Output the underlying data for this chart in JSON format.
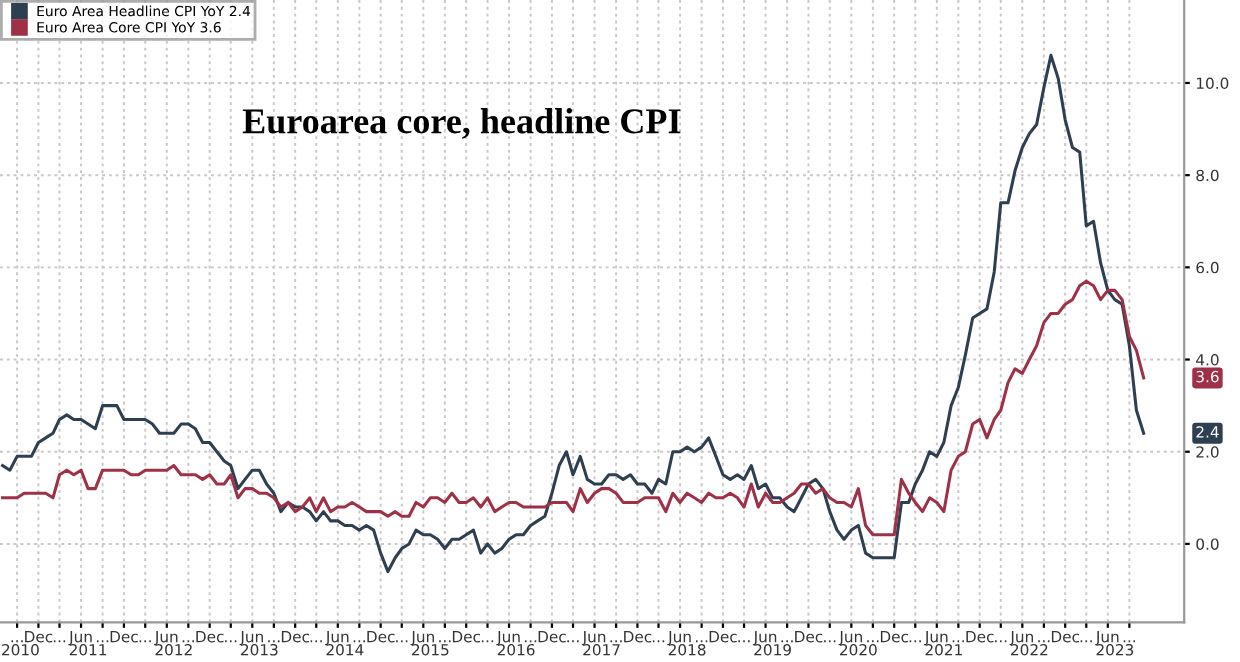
{
  "chart_data": {
    "type": "line",
    "title": "Euroarea core, headline CPI",
    "x": [
      "2010-07",
      "2010-08",
      "2010-09",
      "2010-10",
      "2010-11",
      "2010-12",
      "2011-01",
      "2011-02",
      "2011-03",
      "2011-04",
      "2011-05",
      "2011-06",
      "2011-07",
      "2011-08",
      "2011-09",
      "2011-10",
      "2011-11",
      "2011-12",
      "2012-01",
      "2012-02",
      "2012-03",
      "2012-04",
      "2012-05",
      "2012-06",
      "2012-07",
      "2012-08",
      "2012-09",
      "2012-10",
      "2012-11",
      "2012-12",
      "2013-01",
      "2013-02",
      "2013-03",
      "2013-04",
      "2013-05",
      "2013-06",
      "2013-07",
      "2013-08",
      "2013-09",
      "2013-10",
      "2013-11",
      "2013-12",
      "2014-01",
      "2014-02",
      "2014-03",
      "2014-04",
      "2014-05",
      "2014-06",
      "2014-07",
      "2014-08",
      "2014-09",
      "2014-10",
      "2014-11",
      "2014-12",
      "2015-01",
      "2015-02",
      "2015-03",
      "2015-04",
      "2015-05",
      "2015-06",
      "2015-07",
      "2015-08",
      "2015-09",
      "2015-10",
      "2015-11",
      "2015-12",
      "2016-01",
      "2016-02",
      "2016-03",
      "2016-04",
      "2016-05",
      "2016-06",
      "2016-07",
      "2016-08",
      "2016-09",
      "2016-10",
      "2016-11",
      "2016-12",
      "2017-01",
      "2017-02",
      "2017-03",
      "2017-04",
      "2017-05",
      "2017-06",
      "2017-07",
      "2017-08",
      "2017-09",
      "2017-10",
      "2017-11",
      "2017-12",
      "2018-01",
      "2018-02",
      "2018-03",
      "2018-04",
      "2018-05",
      "2018-06",
      "2018-07",
      "2018-08",
      "2018-09",
      "2018-10",
      "2018-11",
      "2018-12",
      "2019-01",
      "2019-02",
      "2019-03",
      "2019-04",
      "2019-05",
      "2019-06",
      "2019-07",
      "2019-08",
      "2019-09",
      "2019-10",
      "2019-11",
      "2019-12",
      "2020-01",
      "2020-02",
      "2020-03",
      "2020-04",
      "2020-05",
      "2020-06",
      "2020-07",
      "2020-08",
      "2020-09",
      "2020-10",
      "2020-11",
      "2020-12",
      "2021-01",
      "2021-02",
      "2021-03",
      "2021-04",
      "2021-05",
      "2021-06",
      "2021-07",
      "2021-08",
      "2021-09",
      "2021-10",
      "2021-11",
      "2021-12",
      "2022-01",
      "2022-02",
      "2022-03",
      "2022-04",
      "2022-05",
      "2022-06",
      "2022-07",
      "2022-08",
      "2022-09",
      "2022-10",
      "2022-11",
      "2022-12",
      "2023-01",
      "2023-02",
      "2023-03",
      "2023-04",
      "2023-05",
      "2023-06",
      "2023-07",
      "2023-08",
      "2023-09",
      "2023-10",
      "2023-11"
    ],
    "series": [
      {
        "name": "Euro Area Headline CPI YoY 2.4",
        "color": "#2e3f52",
        "values": [
          1.7,
          1.6,
          1.9,
          1.9,
          1.9,
          2.2,
          2.3,
          2.4,
          2.7,
          2.8,
          2.7,
          2.7,
          2.6,
          2.5,
          3.0,
          3.0,
          3.0,
          2.7,
          2.7,
          2.7,
          2.7,
          2.6,
          2.4,
          2.4,
          2.4,
          2.6,
          2.6,
          2.5,
          2.2,
          2.2,
          2.0,
          1.8,
          1.7,
          1.2,
          1.4,
          1.6,
          1.6,
          1.3,
          1.1,
          0.7,
          0.9,
          0.8,
          0.8,
          0.7,
          0.5,
          0.7,
          0.5,
          0.5,
          0.4,
          0.4,
          0.3,
          0.4,
          0.3,
          -0.2,
          -0.6,
          -0.3,
          -0.1,
          0.0,
          0.3,
          0.2,
          0.2,
          0.1,
          -0.1,
          0.1,
          0.1,
          0.2,
          0.3,
          -0.2,
          0.0,
          -0.2,
          -0.1,
          0.1,
          0.2,
          0.2,
          0.4,
          0.5,
          0.6,
          1.1,
          1.7,
          2.0,
          1.5,
          1.9,
          1.4,
          1.3,
          1.3,
          1.5,
          1.5,
          1.4,
          1.5,
          1.3,
          1.3,
          1.1,
          1.4,
          1.3,
          2.0,
          2.0,
          2.1,
          2.0,
          2.1,
          2.3,
          1.9,
          1.5,
          1.4,
          1.5,
          1.4,
          1.7,
          1.2,
          1.3,
          1.0,
          1.0,
          0.8,
          0.7,
          1.0,
          1.3,
          1.4,
          1.2,
          0.7,
          0.3,
          0.1,
          0.3,
          0.4,
          -0.2,
          -0.3,
          -0.3,
          -0.3,
          -0.3,
          0.9,
          0.9,
          1.3,
          1.6,
          2.0,
          1.9,
          2.2,
          3.0,
          3.4,
          4.1,
          4.9,
          5.0,
          5.1,
          5.9,
          7.4,
          7.4,
          8.1,
          8.6,
          8.9,
          9.1,
          9.9,
          10.6,
          10.1,
          9.2,
          8.6,
          8.5,
          6.9,
          7.0,
          6.1,
          5.5,
          5.3,
          5.2,
          4.3,
          2.9,
          2.4
        ]
      },
      {
        "name": "Euro Area Core CPI YoY 3.6",
        "color": "#9e3048",
        "values": [
          1.0,
          1.0,
          1.0,
          1.1,
          1.1,
          1.1,
          1.1,
          1.0,
          1.5,
          1.6,
          1.5,
          1.6,
          1.2,
          1.2,
          1.6,
          1.6,
          1.6,
          1.6,
          1.5,
          1.5,
          1.6,
          1.6,
          1.6,
          1.6,
          1.7,
          1.5,
          1.5,
          1.5,
          1.4,
          1.5,
          1.3,
          1.3,
          1.5,
          1.0,
          1.2,
          1.2,
          1.1,
          1.1,
          1.0,
          0.8,
          0.9,
          0.7,
          0.8,
          1.0,
          0.7,
          1.0,
          0.7,
          0.8,
          0.8,
          0.9,
          0.8,
          0.7,
          0.7,
          0.7,
          0.6,
          0.7,
          0.6,
          0.6,
          0.9,
          0.8,
          1.0,
          1.0,
          0.9,
          1.1,
          0.9,
          0.9,
          1.0,
          0.8,
          1.0,
          0.7,
          0.8,
          0.9,
          0.9,
          0.8,
          0.8,
          0.8,
          0.8,
          0.9,
          0.9,
          0.9,
          0.7,
          1.2,
          0.9,
          1.1,
          1.2,
          1.2,
          1.1,
          0.9,
          0.9,
          0.9,
          1.0,
          1.0,
          1.0,
          0.7,
          1.1,
          0.9,
          1.1,
          1.0,
          0.9,
          1.1,
          1.0,
          1.0,
          1.1,
          1.0,
          0.8,
          1.3,
          0.8,
          1.1,
          0.9,
          0.9,
          1.0,
          1.1,
          1.3,
          1.3,
          1.1,
          1.2,
          1.0,
          0.9,
          0.9,
          0.8,
          1.2,
          0.4,
          0.2,
          0.2,
          0.2,
          0.2,
          1.4,
          1.1,
          0.9,
          0.7,
          1.0,
          0.9,
          0.7,
          1.6,
          1.9,
          2.0,
          2.6,
          2.7,
          2.3,
          2.7,
          2.9,
          3.5,
          3.8,
          3.7,
          4.0,
          4.3,
          4.8,
          5.0,
          5.0,
          5.2,
          5.3,
          5.6,
          5.7,
          5.6,
          5.3,
          5.5,
          5.5,
          5.3,
          4.5,
          4.2,
          3.6
        ]
      }
    ],
    "annotations": [
      "2.4",
      "3.6"
    ],
    "xlim": [
      "2010-06-20",
      "2024-04-22"
    ],
    "xticks": [
      {
        "value": "2010-09",
        "label": "..."
      },
      {
        "value": "2010-12",
        "label": "Dec"
      },
      {
        "value": "2011-03",
        "label": "..."
      },
      {
        "value": "2011-06",
        "label": "Jun"
      },
      {
        "value": "2011-09",
        "label": "..."
      },
      {
        "value": "2011-12",
        "label": "Dec"
      },
      {
        "value": "2012-03",
        "label": "..."
      },
      {
        "value": "2012-06",
        "label": "Jun"
      },
      {
        "value": "2012-09",
        "label": "..."
      },
      {
        "value": "2012-12",
        "label": "Dec"
      },
      {
        "value": "2013-03",
        "label": "..."
      },
      {
        "value": "2013-06",
        "label": "Jun"
      },
      {
        "value": "2013-09",
        "label": "..."
      },
      {
        "value": "2013-12",
        "label": "Dec"
      },
      {
        "value": "2014-03",
        "label": "..."
      },
      {
        "value": "2014-06",
        "label": "Jun"
      },
      {
        "value": "2014-09",
        "label": "..."
      },
      {
        "value": "2014-12",
        "label": "Dec"
      },
      {
        "value": "2015-03",
        "label": "..."
      },
      {
        "value": "2015-06",
        "label": "Jun"
      },
      {
        "value": "2015-09",
        "label": "..."
      },
      {
        "value": "2015-12",
        "label": "Dec"
      },
      {
        "value": "2016-03",
        "label": "..."
      },
      {
        "value": "2016-06",
        "label": "Jun"
      },
      {
        "value": "2016-09",
        "label": "..."
      },
      {
        "value": "2016-12",
        "label": "Dec"
      },
      {
        "value": "2017-03",
        "label": "..."
      },
      {
        "value": "2017-06",
        "label": "Jun"
      },
      {
        "value": "2017-09",
        "label": "..."
      },
      {
        "value": "2017-12",
        "label": "Dec"
      },
      {
        "value": "2018-03",
        "label": "..."
      },
      {
        "value": "2018-06",
        "label": "Jun"
      },
      {
        "value": "2018-09",
        "label": "..."
      },
      {
        "value": "2018-12",
        "label": "Dec"
      },
      {
        "value": "2019-03",
        "label": "..."
      },
      {
        "value": "2019-06",
        "label": "Jun"
      },
      {
        "value": "2019-09",
        "label": "..."
      },
      {
        "value": "2019-12",
        "label": "Dec"
      },
      {
        "value": "2020-03",
        "label": "..."
      },
      {
        "value": "2020-06",
        "label": "Jun"
      },
      {
        "value": "2020-09",
        "label": "..."
      },
      {
        "value": "2020-12",
        "label": "Dec"
      },
      {
        "value": "2021-03",
        "label": "..."
      },
      {
        "value": "2021-06",
        "label": "Jun"
      },
      {
        "value": "2021-09",
        "label": "..."
      },
      {
        "value": "2021-12",
        "label": "Dec"
      },
      {
        "value": "2022-03",
        "label": "..."
      },
      {
        "value": "2022-06",
        "label": "Jun"
      },
      {
        "value": "2022-09",
        "label": "..."
      },
      {
        "value": "2022-12",
        "label": "Dec"
      },
      {
        "value": "2023-03",
        "label": "..."
      },
      {
        "value": "2023-06",
        "label": "Jun"
      },
      {
        "value": "2023-09",
        "label": "..."
      }
    ],
    "x2lim": [
      "2010-06-20",
      "2024-04-22"
    ],
    "x2ticks": [
      {
        "value": "2010-09-15",
        "label": "2010"
      },
      {
        "value": "2011-07-01",
        "label": "2011"
      },
      {
        "value": "2012-07-01",
        "label": "2012"
      },
      {
        "value": "2013-07-01",
        "label": "2013"
      },
      {
        "value": "2014-07-01",
        "label": "2014"
      },
      {
        "value": "2015-07-01",
        "label": "2015"
      },
      {
        "value": "2016-07-01",
        "label": "2016"
      },
      {
        "value": "2017-07-01",
        "label": "2017"
      },
      {
        "value": "2018-07-01",
        "label": "2018"
      },
      {
        "value": "2019-07-01",
        "label": "2019"
      },
      {
        "value": "2020-07-01",
        "label": "2020"
      },
      {
        "value": "2021-07-01",
        "label": "2021"
      },
      {
        "value": "2022-07-01",
        "label": "2022"
      },
      {
        "value": "2023-07-01",
        "label": "2023"
      }
    ],
    "ylim": [
      -1.7,
      11.8
    ],
    "yticks": [
      {
        "value": 0,
        "label": "0.0"
      },
      {
        "value": 2,
        "label": "2.0"
      },
      {
        "value": 4,
        "label": "4.0"
      },
      {
        "value": 6,
        "label": "6.0"
      },
      {
        "value": 8,
        "label": "8.0"
      },
      {
        "value": 10,
        "label": "10.0"
      }
    ],
    "grid": true,
    "legend": "top left",
    "line_style": "solid",
    "marker": "none"
  }
}
